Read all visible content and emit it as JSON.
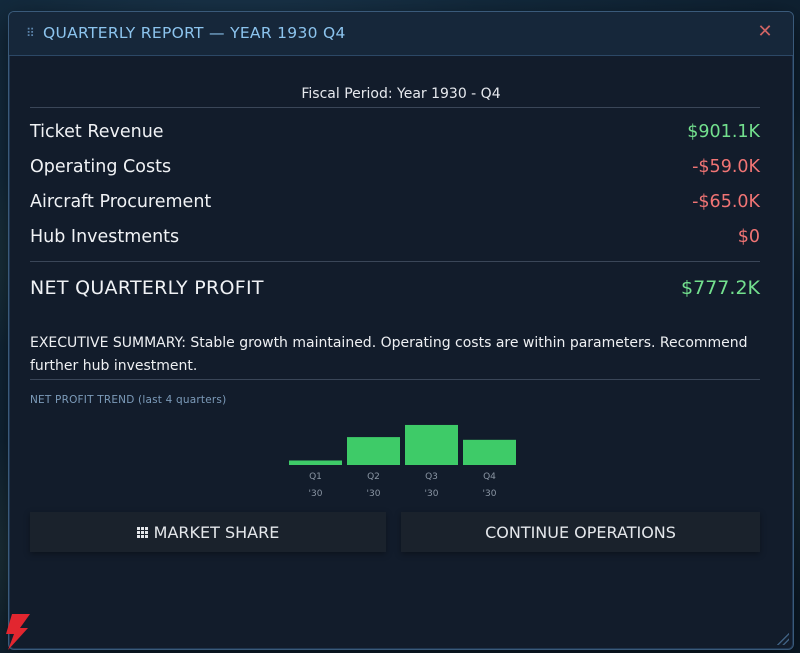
{
  "window": {
    "title": "QUARTERLY REPORT  —  YEAR 1930  Q4",
    "close_glyph": "✕",
    "drag_glyph": "⠿"
  },
  "report": {
    "period": "Fiscal Period: Year 1930 - Q4",
    "line_items": [
      {
        "label": "Ticket Revenue",
        "value": "$901.1K",
        "sign": "positive"
      },
      {
        "label": "Operating Costs",
        "value": "-$59.0K",
        "sign": "negative"
      },
      {
        "label": "Aircraft Procurement",
        "value": "-$65.0K",
        "sign": "negative"
      },
      {
        "label": "Hub Investments",
        "value": "$0",
        "sign": "negative"
      }
    ],
    "net": {
      "label": "NET QUARTERLY PROFIT",
      "value": "$777.2K"
    },
    "summary": "EXECUTIVE SUMMARY: Stable growth maintained. Operating costs are within parameters. Recommend further hub investment."
  },
  "trend": {
    "title": "NET PROFIT TREND  (last 4 quarters)"
  },
  "chart_data": {
    "type": "bar",
    "title": "NET PROFIT TREND  (last 4 quarters)",
    "categories": [
      "Q1",
      "Q2",
      "Q3",
      "Q4"
    ],
    "sublabels": [
      "'30",
      "'30",
      "'30",
      "'30"
    ],
    "values": [
      0.1,
      0.62,
      0.89,
      0.56
    ],
    "value_units": "relative bar height (no value axis shown)",
    "bar_color": "#3ecb68",
    "grid": false,
    "legend": "none"
  },
  "buttons": {
    "market_share": "MARKET SHARE",
    "continue": "CONTINUE OPERATIONS"
  },
  "colors": {
    "positive": "#73e08e",
    "negative": "#f07474",
    "title": "#8cc4ee",
    "panel": "#121c2b"
  }
}
